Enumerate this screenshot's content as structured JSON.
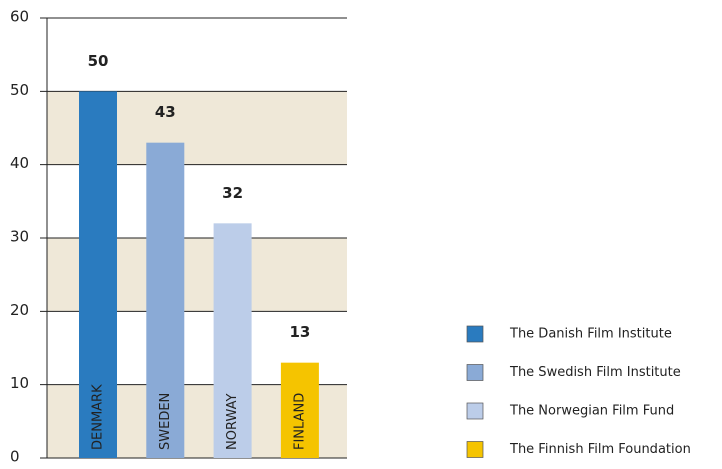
{
  "chart_data": {
    "type": "bar",
    "categories": [
      "DENMARK",
      "SWEDEN",
      "NORWAY",
      "FINLAND"
    ],
    "values": [
      50,
      43,
      32,
      13
    ],
    "colors": [
      "#2a7bbf",
      "#8aaad6",
      "#bccde9",
      "#f5c400"
    ],
    "legend": [
      "The Danish Film Institute",
      "The Swedish Film Institute",
      "The Norwegian Film Fund",
      "The Finnish Film Foundation"
    ],
    "ylim": [
      0,
      60
    ],
    "yticks": [
      0,
      10,
      20,
      30,
      40,
      50,
      60
    ],
    "grid": true,
    "bands": true
  }
}
